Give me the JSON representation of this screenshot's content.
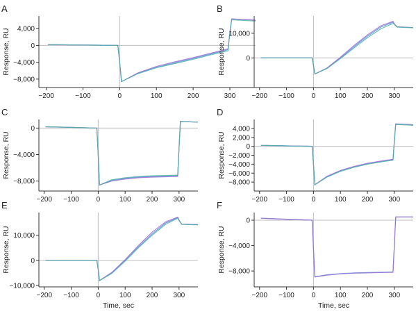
{
  "colors": {
    "axis": "#333333",
    "zero_line": "#bdbdbd",
    "series": [
      "#5b8fd9",
      "#9a6fd1",
      "#4fb3a6",
      "#e07a7a",
      "#c9b06a",
      "#8aa0b8"
    ]
  },
  "chart_data": [
    {
      "type": "line",
      "panel": "A",
      "xlabel": "",
      "ylabel": "Response, RU",
      "xlim": [
        -220,
        370
      ],
      "ylim": [
        -10000,
        7000
      ],
      "xticks": [
        -200,
        -100,
        0,
        100,
        200,
        300
      ],
      "xtick_labels": [
        "−200",
        "−100",
        "0",
        "100",
        "200",
        "300"
      ],
      "yticks": [
        4000,
        0,
        -4000,
        -8000
      ],
      "ytick_labels": [
        "4,000",
        "0",
        "−4,000",
        "−8,000"
      ],
      "zero_lines": {
        "x": 0,
        "y": 0
      },
      "series": [
        {
          "x": [
            -195,
            -100,
            -5,
            0,
            5,
            50,
            100,
            150,
            200,
            250,
            295,
            300,
            305,
            370
          ],
          "y": [
            200,
            100,
            0,
            -4000,
            -8600,
            -6600,
            -5200,
            -4100,
            -3100,
            -2000,
            -1000,
            3000,
            6300,
            6000
          ]
        },
        {
          "x": [
            -195,
            -100,
            -5,
            0,
            5,
            50,
            100,
            150,
            200,
            250,
            295,
            300,
            305,
            370
          ],
          "y": [
            200,
            100,
            0,
            -4000,
            -8600,
            -6500,
            -5000,
            -3900,
            -2900,
            -1800,
            -800,
            3000,
            6300,
            6000
          ]
        },
        {
          "x": [
            -195,
            -100,
            -5,
            0,
            5,
            50,
            100,
            150,
            200,
            250,
            295,
            300,
            305,
            370
          ],
          "y": [
            200,
            100,
            0,
            -4000,
            -8600,
            -6700,
            -5300,
            -4300,
            -3300,
            -2200,
            -1300,
            3000,
            6100,
            5800
          ]
        }
      ]
    },
    {
      "type": "line",
      "panel": "B",
      "xlabel": "",
      "ylabel": "Response, RU",
      "xlim": [
        -220,
        370
      ],
      "ylim": [
        -12000,
        17000
      ],
      "xticks": [
        -200,
        -100,
        0,
        100,
        200,
        300
      ],
      "xtick_labels": [
        "−200",
        "−100",
        "0",
        "100",
        "200",
        "300"
      ],
      "yticks": [
        10000,
        0
      ],
      "ytick_labels": [
        "10,000",
        "0"
      ],
      "zero_lines": {
        "x": 0,
        "y": 0
      },
      "series": [
        {
          "x": [
            -195,
            -100,
            -5,
            0,
            5,
            50,
            100,
            150,
            200,
            250,
            295,
            300,
            310,
            370
          ],
          "y": [
            0,
            0,
            0,
            -3000,
            -6500,
            -4200,
            0,
            4500,
            8800,
            12500,
            14500,
            13800,
            12600,
            12300
          ]
        },
        {
          "x": [
            -195,
            -100,
            -5,
            0,
            5,
            50,
            100,
            150,
            200,
            250,
            295,
            300,
            310,
            370
          ],
          "y": [
            0,
            0,
            0,
            -3000,
            -6500,
            -4100,
            300,
            5000,
            9300,
            13000,
            14800,
            13800,
            12600,
            12300
          ]
        },
        {
          "x": [
            -195,
            -100,
            -5,
            0,
            5,
            50,
            100,
            150,
            200,
            250,
            295,
            300,
            310,
            370
          ],
          "y": [
            0,
            0,
            0,
            -3000,
            -6500,
            -4300,
            -300,
            4000,
            8200,
            11800,
            14000,
            13600,
            12500,
            12200
          ]
        }
      ]
    },
    {
      "type": "line",
      "panel": "C",
      "xlabel": "",
      "ylabel": "Response, RU",
      "xlim": [
        -220,
        370
      ],
      "ylim": [
        -9500,
        1300
      ],
      "xticks": [
        -200,
        -100,
        0,
        100,
        200,
        300
      ],
      "xtick_labels": [
        "−200",
        "−100",
        "0",
        "100",
        "200",
        "300"
      ],
      "yticks": [
        0,
        -4000,
        -8000
      ],
      "ytick_labels": [
        "0",
        "−4,000",
        "−8,000"
      ],
      "zero_lines": {
        "x": 0,
        "y": 0
      },
      "series": [
        {
          "x": [
            -195,
            -100,
            -5,
            0,
            5,
            50,
            100,
            150,
            200,
            250,
            295,
            300,
            305,
            370
          ],
          "y": [
            200,
            100,
            0,
            -4000,
            -8600,
            -7900,
            -7600,
            -7400,
            -7300,
            -7250,
            -7200,
            -3000,
            1000,
            900
          ]
        },
        {
          "x": [
            -195,
            -100,
            -5,
            0,
            5,
            50,
            100,
            150,
            200,
            250,
            295,
            300,
            305,
            370
          ],
          "y": [
            200,
            100,
            0,
            -4000,
            -8600,
            -8000,
            -7700,
            -7500,
            -7400,
            -7350,
            -7300,
            -3000,
            1000,
            900
          ]
        },
        {
          "x": [
            -195,
            -100,
            -5,
            0,
            5,
            50,
            100,
            150,
            200,
            250,
            295,
            300,
            305,
            370
          ],
          "y": [
            200,
            100,
            0,
            -4000,
            -8600,
            -7800,
            -7500,
            -7300,
            -7200,
            -7150,
            -7100,
            -3000,
            1000,
            900
          ]
        }
      ]
    },
    {
      "type": "line",
      "panel": "D",
      "xlabel": "",
      "ylabel": "Response, RU",
      "xlim": [
        -220,
        370
      ],
      "ylim": [
        -10000,
        6000
      ],
      "xticks": [
        -200,
        -100,
        0,
        100,
        200,
        300
      ],
      "xtick_labels": [
        "−200",
        "−100",
        "0",
        "100",
        "200",
        "300"
      ],
      "yticks": [
        4000,
        2000,
        0,
        -2000,
        -4000,
        -6000,
        -8000
      ],
      "ytick_labels": [
        "4,000",
        "2,000",
        "0",
        "−2,000",
        "−4,000",
        "−6,000",
        "−8,000"
      ],
      "zero_lines": {
        "x": 0,
        "y": 0
      },
      "series": [
        {
          "x": [
            -195,
            -100,
            -5,
            0,
            5,
            50,
            100,
            150,
            200,
            250,
            295,
            300,
            305,
            370
          ],
          "y": [
            200,
            100,
            0,
            -4000,
            -8600,
            -6800,
            -5500,
            -4600,
            -3900,
            -3400,
            -3000,
            1000,
            5000,
            4800
          ]
        },
        {
          "x": [
            -195,
            -100,
            -5,
            0,
            5,
            50,
            100,
            150,
            200,
            250,
            295,
            300,
            305,
            370
          ],
          "y": [
            200,
            100,
            0,
            -4000,
            -8600,
            -6700,
            -5400,
            -4500,
            -3800,
            -3300,
            -2900,
            1000,
            5000,
            4800
          ]
        },
        {
          "x": [
            -195,
            -100,
            -5,
            0,
            5,
            50,
            100,
            150,
            200,
            250,
            295,
            300,
            305,
            370
          ],
          "y": [
            200,
            100,
            0,
            -4000,
            -8600,
            -6900,
            -5600,
            -4700,
            -4000,
            -3500,
            -3100,
            1000,
            4900,
            4700
          ]
        }
      ]
    },
    {
      "type": "line",
      "panel": "E",
      "xlabel": "Time, sec",
      "ylabel": "Response, RU",
      "xlim": [
        -220,
        370
      ],
      "ylim": [
        -10500,
        19000
      ],
      "xticks": [
        -200,
        -100,
        0,
        100,
        200,
        300
      ],
      "xtick_labels": [
        "−200",
        "−100",
        "0",
        "100",
        "200",
        "300"
      ],
      "yticks": [
        10000,
        0,
        -10000
      ],
      "ytick_labels": [
        "10,000",
        "0",
        "−10,000"
      ],
      "zero_lines": {
        "x": 0,
        "y": 0
      },
      "series": [
        {
          "x": [
            -195,
            -100,
            -5,
            0,
            5,
            50,
            100,
            150,
            200,
            250,
            295,
            300,
            310,
            370
          ],
          "y": [
            0,
            0,
            0,
            -3500,
            -8000,
            -5000,
            0,
            5500,
            10500,
            14800,
            17000,
            16000,
            14400,
            14200
          ]
        },
        {
          "x": [
            -195,
            -100,
            -5,
            0,
            5,
            50,
            100,
            150,
            200,
            250,
            295,
            300,
            310,
            370
          ],
          "y": [
            0,
            0,
            0,
            -3500,
            -8000,
            -4800,
            300,
            6000,
            11200,
            15300,
            17200,
            16000,
            14400,
            14200
          ]
        },
        {
          "x": [
            -195,
            -100,
            -5,
            0,
            5,
            50,
            100,
            150,
            200,
            250,
            295,
            300,
            310,
            370
          ],
          "y": [
            0,
            0,
            0,
            -3500,
            -8000,
            -5200,
            -300,
            5100,
            10000,
            14300,
            16700,
            15800,
            14300,
            14100
          ]
        }
      ]
    },
    {
      "type": "line",
      "panel": "F",
      "xlabel": "Time, sec",
      "ylabel": "Response, RU",
      "xlim": [
        -220,
        370
      ],
      "ylim": [
        -10500,
        1200
      ],
      "xticks": [
        -200,
        -100,
        0,
        100,
        200,
        300
      ],
      "xtick_labels": [
        "−200",
        "−100",
        "0",
        "100",
        "200",
        "300"
      ],
      "yticks": [
        0,
        -4000,
        -8000
      ],
      "ytick_labels": [
        "0",
        "−4,000",
        "−8,000"
      ],
      "zero_lines": {
        "x": 0,
        "y": 0
      },
      "series": [
        {
          "x": [
            -195,
            -100,
            -5,
            0,
            5,
            50,
            100,
            150,
            200,
            250,
            295,
            300,
            305,
            370
          ],
          "y": [
            300,
            150,
            0,
            -4500,
            -8900,
            -8600,
            -8400,
            -8300,
            -8250,
            -8200,
            -8150,
            -4000,
            500,
            500
          ]
        },
        {
          "x": [
            -195,
            -100,
            -5,
            0,
            5,
            50,
            100,
            150,
            200,
            250,
            295,
            300,
            305,
            370
          ],
          "y": [
            300,
            150,
            0,
            -4500,
            -8950,
            -8650,
            -8450,
            -8350,
            -8300,
            -8250,
            -8200,
            -4000,
            500,
            500
          ]
        }
      ]
    }
  ]
}
